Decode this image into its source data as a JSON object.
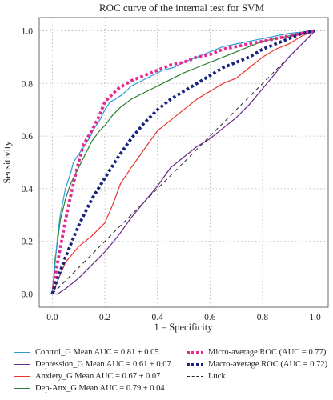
{
  "chart_data": {
    "type": "line",
    "title": "ROC curve of the internal test for SVM",
    "xlabel": "1 – Specificity",
    "ylabel": "Sensitivity",
    "xlim": [
      -0.05,
      1.05
    ],
    "ylim": [
      -0.05,
      1.05
    ],
    "xticks": [
      "0.0",
      "0.2",
      "0.4",
      "0.6",
      "0.8",
      "1.0"
    ],
    "yticks": [
      "0.0",
      "0.2",
      "0.4",
      "0.6",
      "0.8",
      "1.0"
    ],
    "grid": true,
    "legend_position": "below",
    "series": [
      {
        "name": "Control_G Mean AUC = 0.81 ± 0.05",
        "color": "#2e9bd6",
        "style": "solid",
        "x": [
          0.0,
          0.01,
          0.02,
          0.03,
          0.05,
          0.07,
          0.08,
          0.1,
          0.12,
          0.14,
          0.16,
          0.18,
          0.2,
          0.22,
          0.24,
          0.27,
          0.3,
          0.34,
          0.38,
          0.42,
          0.46,
          0.5,
          0.55,
          0.6,
          0.65,
          0.7,
          0.75,
          0.8,
          0.85,
          0.9,
          0.95,
          1.0
        ],
        "y": [
          0.0,
          0.11,
          0.22,
          0.3,
          0.4,
          0.46,
          0.5,
          0.53,
          0.56,
          0.59,
          0.63,
          0.66,
          0.7,
          0.73,
          0.74,
          0.76,
          0.79,
          0.81,
          0.83,
          0.85,
          0.86,
          0.88,
          0.9,
          0.92,
          0.94,
          0.95,
          0.96,
          0.97,
          0.98,
          0.99,
          0.995,
          1.0
        ]
      },
      {
        "name": "Depression_G Mean AUC = 0.61 ± 0.07",
        "color": "#6a2a8c",
        "style": "solid",
        "x": [
          0.0,
          0.02,
          0.05,
          0.1,
          0.15,
          0.2,
          0.25,
          0.3,
          0.35,
          0.4,
          0.45,
          0.5,
          0.55,
          0.6,
          0.65,
          0.7,
          0.75,
          0.8,
          0.85,
          0.9,
          0.95,
          1.0
        ],
        "y": [
          0.0,
          0.0,
          0.02,
          0.06,
          0.11,
          0.16,
          0.22,
          0.29,
          0.35,
          0.41,
          0.48,
          0.52,
          0.56,
          0.59,
          0.63,
          0.67,
          0.72,
          0.78,
          0.84,
          0.9,
          0.95,
          1.0
        ]
      },
      {
        "name": "Anxiety_G Mean AUC = 0.67 ± 0.07",
        "color": "#e8342a",
        "style": "solid",
        "x": [
          0.0,
          0.02,
          0.05,
          0.1,
          0.15,
          0.2,
          0.23,
          0.26,
          0.3,
          0.35,
          0.4,
          0.45,
          0.5,
          0.55,
          0.6,
          0.65,
          0.7,
          0.75,
          0.8,
          0.85,
          0.9,
          0.95,
          1.0
        ],
        "y": [
          0.0,
          0.05,
          0.12,
          0.18,
          0.22,
          0.27,
          0.34,
          0.42,
          0.48,
          0.55,
          0.62,
          0.66,
          0.7,
          0.74,
          0.77,
          0.8,
          0.82,
          0.86,
          0.9,
          0.93,
          0.95,
          0.98,
          1.0
        ]
      },
      {
        "name": "Dep-Anx_G Mean AUC = 0.79 ± 0.04",
        "color": "#2e7d32",
        "style": "solid",
        "x": [
          0.0,
          0.01,
          0.02,
          0.03,
          0.05,
          0.07,
          0.09,
          0.11,
          0.13,
          0.15,
          0.18,
          0.2,
          0.23,
          0.26,
          0.3,
          0.34,
          0.38,
          0.42,
          0.46,
          0.5,
          0.55,
          0.6,
          0.65,
          0.7,
          0.75,
          0.8,
          0.85,
          0.9,
          0.95,
          1.0
        ],
        "y": [
          0.0,
          0.13,
          0.2,
          0.28,
          0.36,
          0.42,
          0.46,
          0.5,
          0.54,
          0.58,
          0.62,
          0.64,
          0.68,
          0.71,
          0.74,
          0.76,
          0.78,
          0.8,
          0.82,
          0.84,
          0.86,
          0.88,
          0.9,
          0.92,
          0.94,
          0.96,
          0.97,
          0.98,
          0.99,
          1.0
        ]
      },
      {
        "name": "Micro-average ROC (AUC = 0.77)",
        "color": "#e5298f",
        "style": "dotted",
        "x": [
          0.0,
          0.02,
          0.05,
          0.08,
          0.1,
          0.12,
          0.15,
          0.18,
          0.2,
          0.25,
          0.3,
          0.35,
          0.4,
          0.45,
          0.5,
          0.55,
          0.6,
          0.65,
          0.7,
          0.75,
          0.8,
          0.85,
          0.9,
          0.95,
          1.0
        ],
        "y": [
          0.0,
          0.12,
          0.28,
          0.42,
          0.5,
          0.57,
          0.62,
          0.68,
          0.73,
          0.78,
          0.81,
          0.83,
          0.85,
          0.87,
          0.88,
          0.9,
          0.91,
          0.93,
          0.94,
          0.95,
          0.96,
          0.97,
          0.98,
          0.99,
          1.0
        ]
      },
      {
        "name": "Macro-average ROC (AUC = 0.72)",
        "color": "#1a237e",
        "style": "dotted",
        "x": [
          0.0,
          0.02,
          0.05,
          0.1,
          0.15,
          0.2,
          0.25,
          0.3,
          0.35,
          0.4,
          0.45,
          0.5,
          0.55,
          0.6,
          0.65,
          0.7,
          0.75,
          0.8,
          0.85,
          0.9,
          0.95,
          1.0
        ],
        "y": [
          0.0,
          0.06,
          0.14,
          0.26,
          0.36,
          0.44,
          0.52,
          0.59,
          0.65,
          0.7,
          0.74,
          0.77,
          0.8,
          0.83,
          0.86,
          0.88,
          0.9,
          0.93,
          0.95,
          0.97,
          0.99,
          1.0
        ]
      },
      {
        "name": "Luck",
        "color": "#222222",
        "style": "dashed",
        "x": [
          0.0,
          1.0
        ],
        "y": [
          0.0,
          1.0
        ]
      }
    ]
  }
}
